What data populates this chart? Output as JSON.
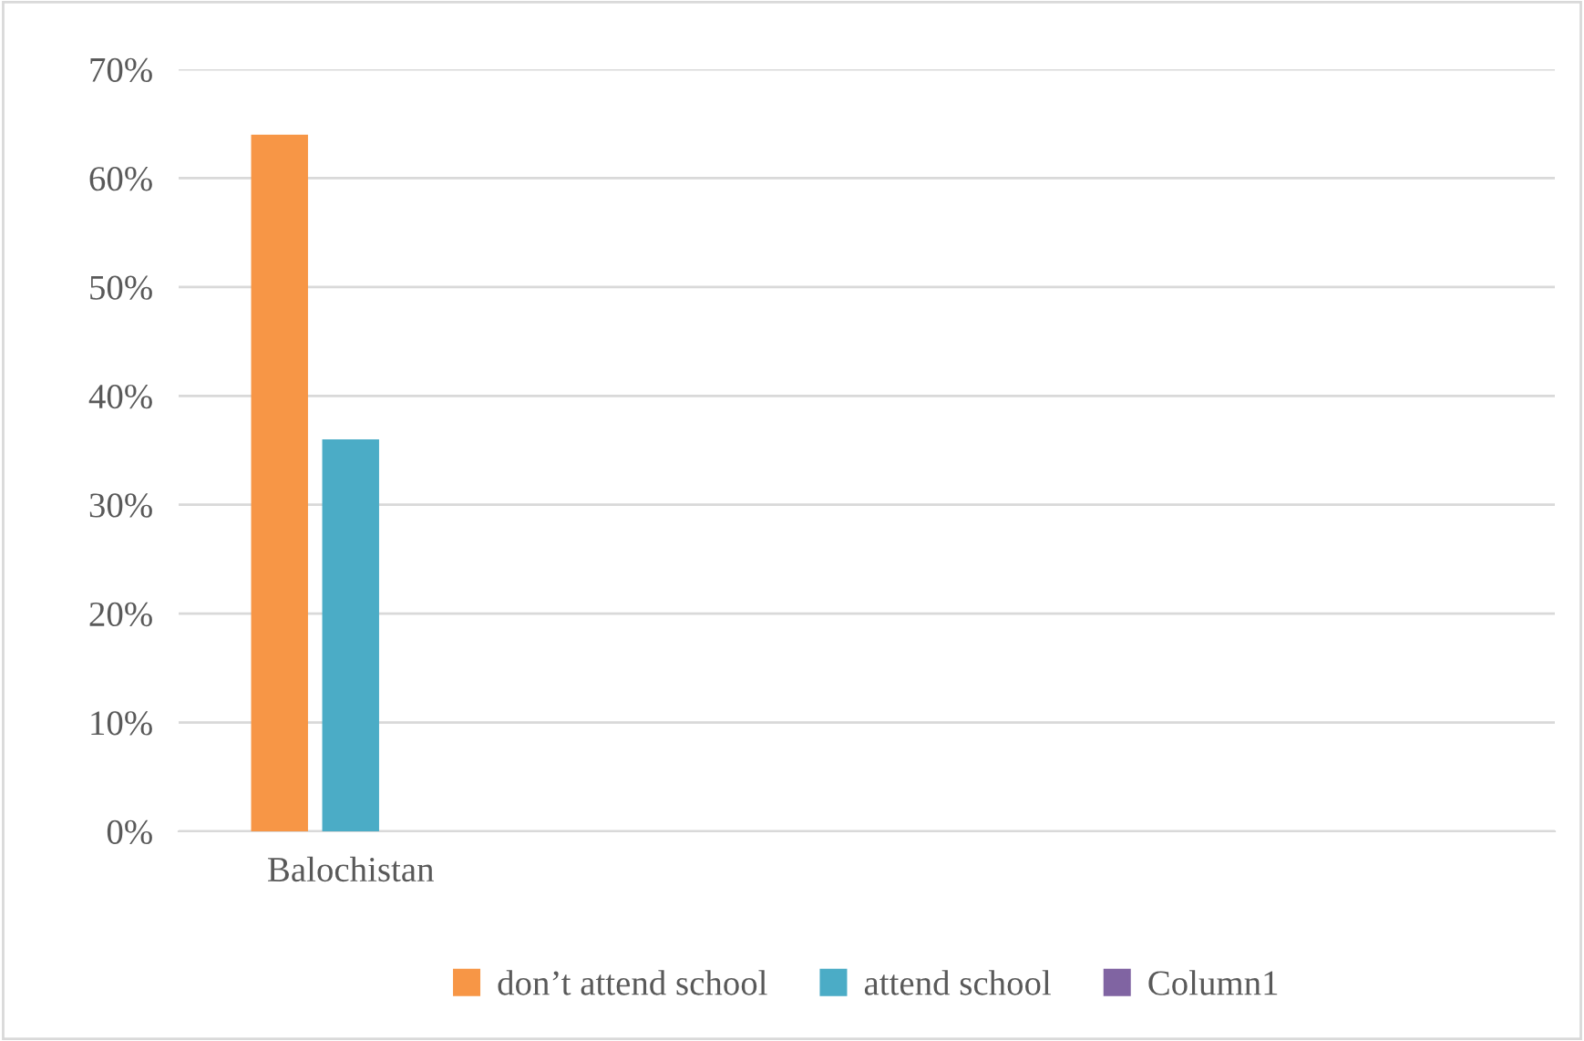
{
  "chart_data": {
    "type": "bar",
    "categories": [
      "Balochistan",
      null,
      null,
      null
    ],
    "series": [
      {
        "name": "don’t attend school",
        "color": "#f79646",
        "values": [
          64,
          null,
          null,
          null
        ]
      },
      {
        "name": "attend school",
        "color": "#4bacc6",
        "values": [
          36,
          null,
          null,
          null
        ]
      },
      {
        "name": "Column1",
        "color": "#8064a2",
        "values": [
          null,
          null,
          null,
          null
        ]
      }
    ],
    "ylim": [
      0,
      70
    ],
    "yticks": [
      {
        "value": 0,
        "label": "0%"
      },
      {
        "value": 10,
        "label": "10%"
      },
      {
        "value": 20,
        "label": "20%"
      },
      {
        "value": 30,
        "label": "30%"
      },
      {
        "value": 40,
        "label": "40%"
      },
      {
        "value": 50,
        "label": "50%"
      },
      {
        "value": 60,
        "label": "60%"
      },
      {
        "value": 70,
        "label": "70%"
      }
    ],
    "grid": "y",
    "legend": "bottom"
  }
}
